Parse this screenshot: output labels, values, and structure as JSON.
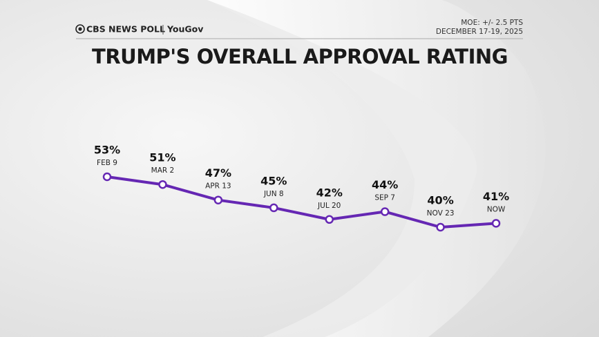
{
  "header": {
    "logo": "CBS NEWS POLL",
    "partner": "YouGov",
    "moe": "MOE: +/- 2.5 PTS",
    "date": "DECEMBER 17-19, 2025"
  },
  "chart_data": {
    "type": "line",
    "title": "TRUMP'S OVERALL APPROVAL RATING",
    "categories": [
      "FEB 9",
      "MAR 2",
      "APR 13",
      "JUN 8",
      "JUL 20",
      "SEP 7",
      "NOV 23",
      "NOW"
    ],
    "values": [
      53,
      51,
      47,
      45,
      42,
      44,
      40,
      41
    ],
    "value_labels": [
      "53%",
      "51%",
      "47%",
      "45%",
      "42%",
      "44%",
      "40%",
      "41%"
    ],
    "color": "#6527b3"
  }
}
